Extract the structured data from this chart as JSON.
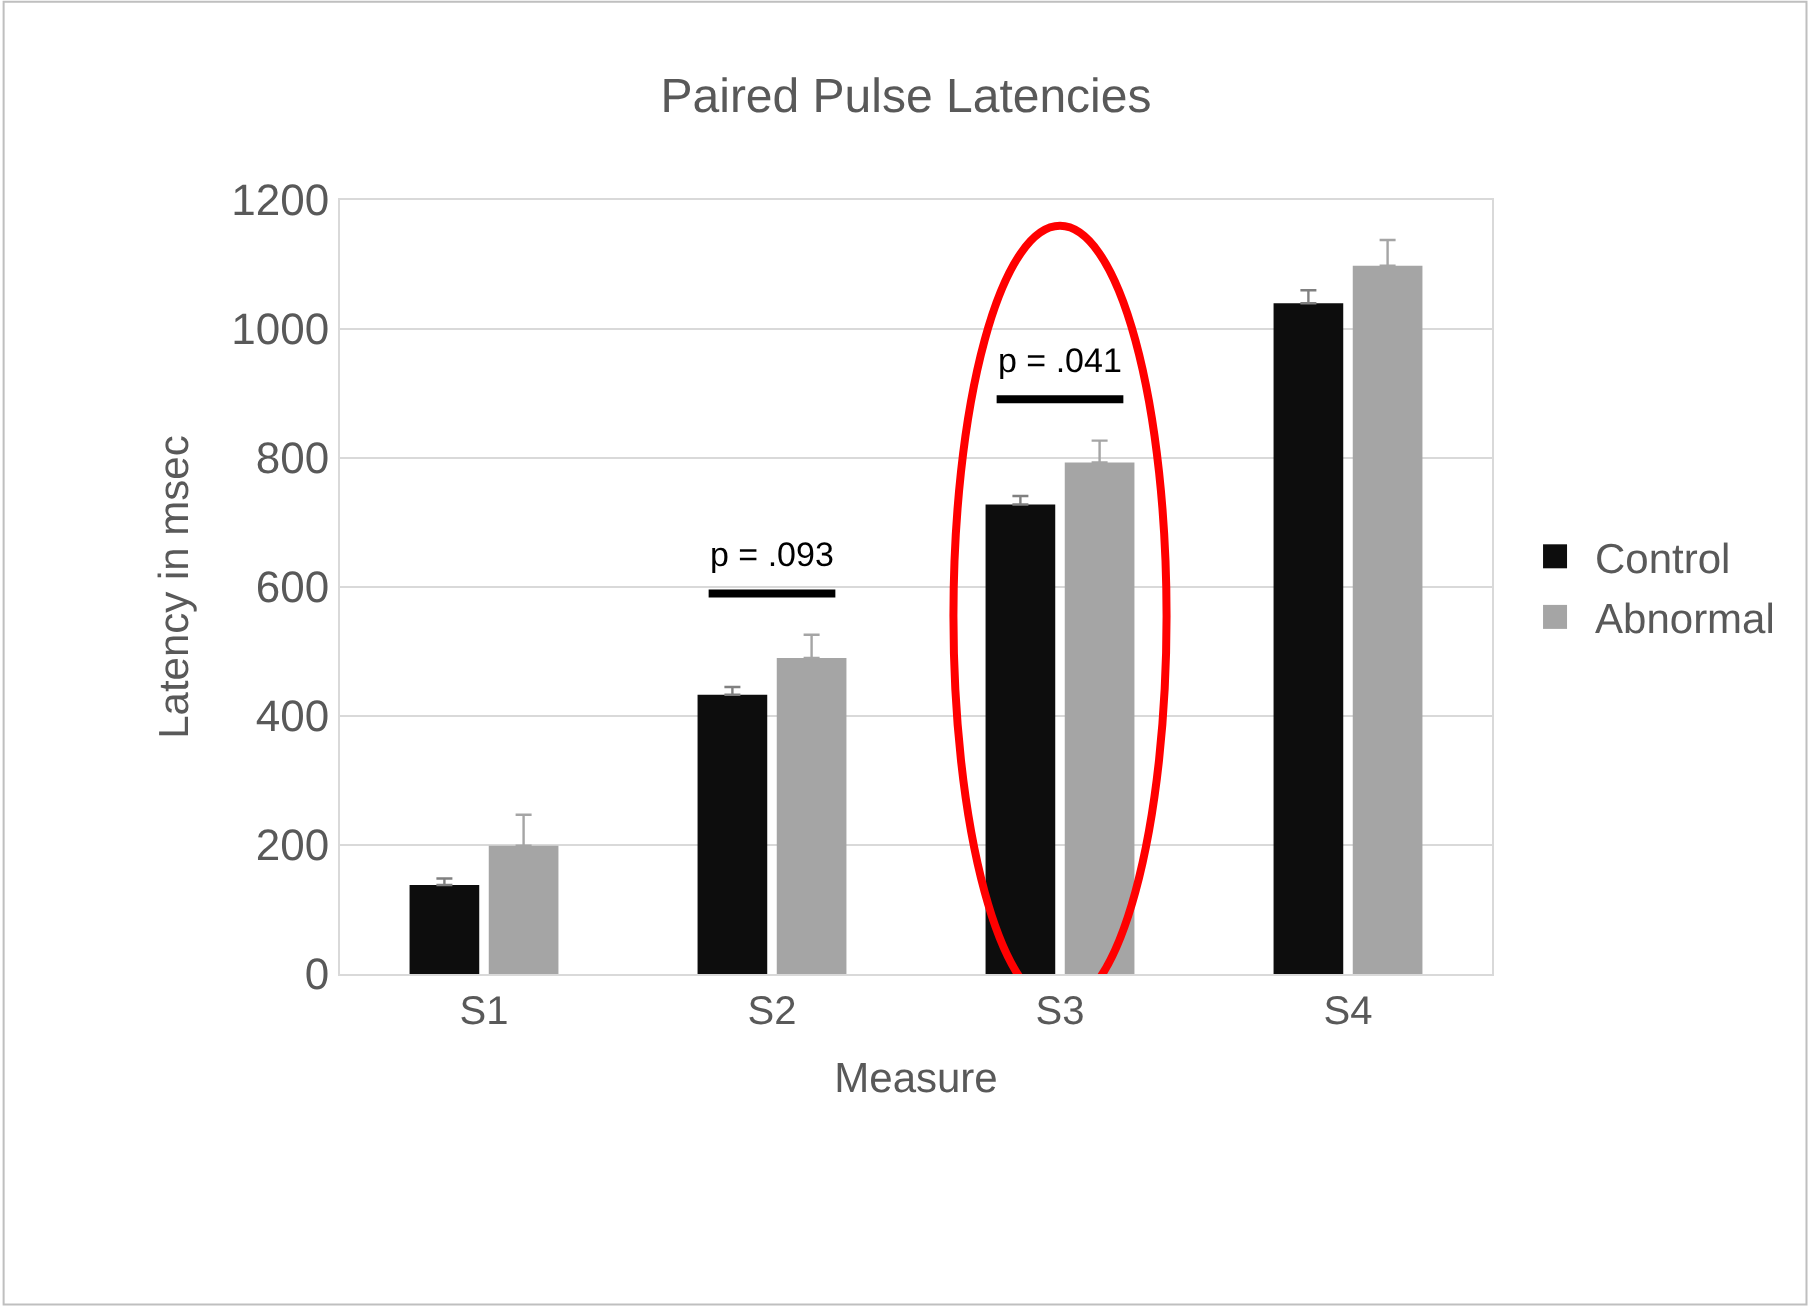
{
  "chart_data": {
    "type": "bar",
    "title": "Paired Pulse Latencies",
    "xlabel": "Measure",
    "ylabel": "Latency in msec",
    "categories": [
      "S1",
      "S2",
      "S3",
      "S4"
    ],
    "series": [
      {
        "name": "Control",
        "color": "#0d0d0d",
        "values": [
          138,
          433,
          728,
          1040
        ],
        "errors": [
          [
            138,
            148
          ],
          [
            433,
            445
          ],
          [
            728,
            741
          ],
          [
            1040,
            1060
          ]
        ]
      },
      {
        "name": "Abnormal",
        "color": "#a5a5a5",
        "values": [
          199,
          490,
          793,
          1098
        ],
        "errors": [
          [
            199,
            247
          ],
          [
            490,
            526
          ],
          [
            793,
            827
          ],
          [
            1098,
            1138
          ]
        ]
      }
    ],
    "ylim": [
      0,
      1200
    ],
    "yticks": [
      0,
      200,
      400,
      600,
      800,
      1000,
      1200
    ],
    "grid": "y",
    "legend": "right",
    "annotations": [
      "p = .093",
      "p = .041"
    ]
  }
}
